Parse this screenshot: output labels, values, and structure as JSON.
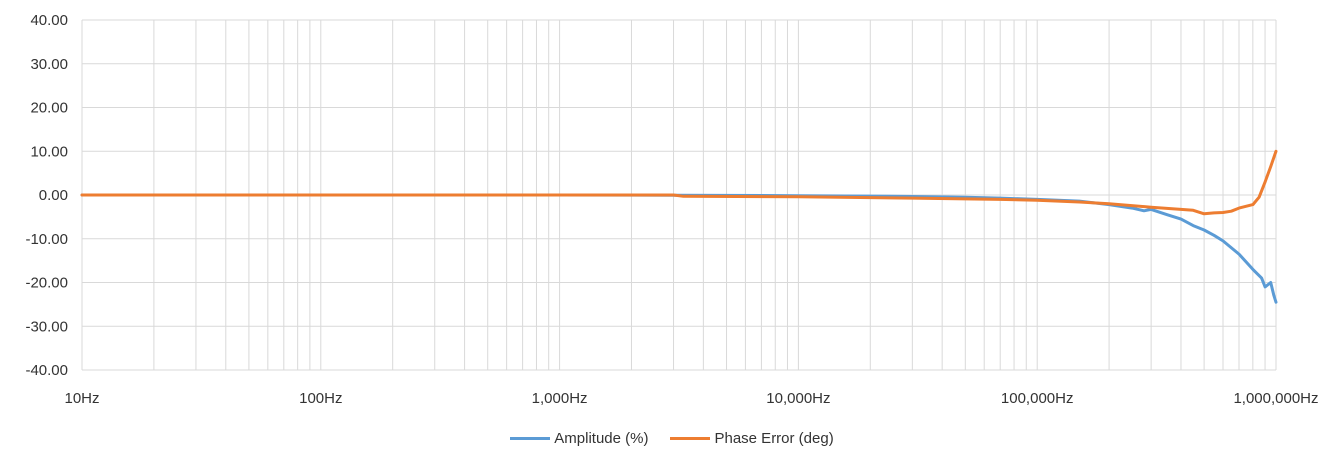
{
  "chart_data": {
    "type": "line",
    "x_scale": "log",
    "xlim": [
      10,
      1000000
    ],
    "ylim": [
      -40,
      40
    ],
    "y_ticks": [
      "40.00",
      "30.00",
      "20.00",
      "10.00",
      "0.00",
      "-10.00",
      "-20.00",
      "-30.00",
      "-40.00"
    ],
    "x_ticks": [
      {
        "value": 10,
        "label": "10Hz"
      },
      {
        "value": 100,
        "label": "100Hz"
      },
      {
        "value": 1000,
        "label": "1,000Hz"
      },
      {
        "value": 10000,
        "label": "10,000Hz"
      },
      {
        "value": 100000,
        "label": "100,000Hz"
      },
      {
        "value": 1000000,
        "label": "1,000,000Hz"
      }
    ],
    "grid": true,
    "legend_position": "bottom",
    "series": [
      {
        "name": "Amplitude (%)",
        "color": "#5b9bd5",
        "points": [
          [
            10,
            0
          ],
          [
            100,
            0
          ],
          [
            1000,
            0
          ],
          [
            3000,
            -0.05
          ],
          [
            10000,
            -0.15
          ],
          [
            20000,
            -0.25
          ],
          [
            30000,
            -0.35
          ],
          [
            50000,
            -0.5
          ],
          [
            70000,
            -0.7
          ],
          [
            100000,
            -1.0
          ],
          [
            150000,
            -1.4
          ],
          [
            200000,
            -2.2
          ],
          [
            250000,
            -3.0
          ],
          [
            280000,
            -3.6
          ],
          [
            300000,
            -3.3
          ],
          [
            350000,
            -4.5
          ],
          [
            400000,
            -5.5
          ],
          [
            450000,
            -7.0
          ],
          [
            500000,
            -8.0
          ],
          [
            550000,
            -9.2
          ],
          [
            600000,
            -10.5
          ],
          [
            700000,
            -13.5
          ],
          [
            800000,
            -17.0
          ],
          [
            870000,
            -19.0
          ],
          [
            900000,
            -21.0
          ],
          [
            950000,
            -20.0
          ],
          [
            980000,
            -23.0
          ],
          [
            1000000,
            -24.5
          ]
        ]
      },
      {
        "name": "Phase Error (deg)",
        "color": "#ed7d31",
        "points": [
          [
            10,
            0
          ],
          [
            100,
            0
          ],
          [
            1000,
            0
          ],
          [
            3000,
            0
          ],
          [
            3300,
            -0.3
          ],
          [
            10000,
            -0.4
          ],
          [
            20000,
            -0.6
          ],
          [
            30000,
            -0.7
          ],
          [
            50000,
            -0.9
          ],
          [
            70000,
            -1.0
          ],
          [
            100000,
            -1.2
          ],
          [
            150000,
            -1.6
          ],
          [
            200000,
            -2.0
          ],
          [
            300000,
            -2.8
          ],
          [
            400000,
            -3.3
          ],
          [
            450000,
            -3.5
          ],
          [
            500000,
            -4.3
          ],
          [
            550000,
            -4.1
          ],
          [
            600000,
            -4.0
          ],
          [
            650000,
            -3.7
          ],
          [
            700000,
            -3.0
          ],
          [
            800000,
            -2.2
          ],
          [
            850000,
            -0.5
          ],
          [
            900000,
            3.0
          ],
          [
            950000,
            6.5
          ],
          [
            1000000,
            10.0
          ]
        ]
      }
    ]
  }
}
